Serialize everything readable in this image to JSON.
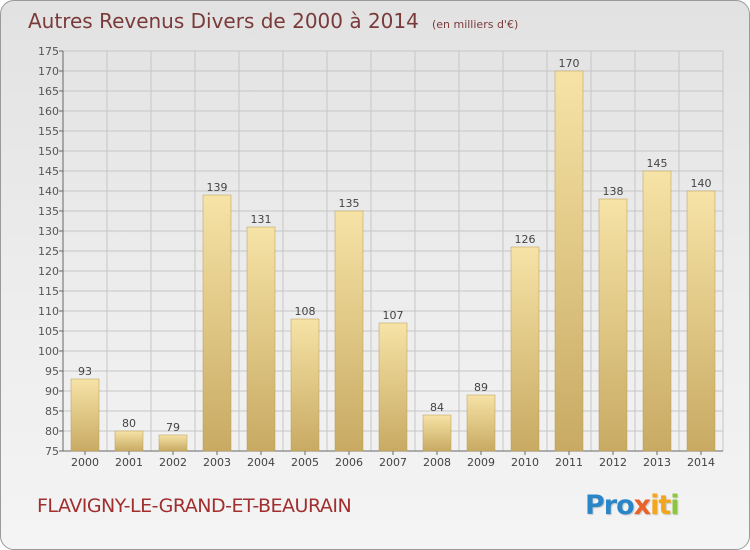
{
  "title": {
    "main": "Autres Revenus Divers de 2000 à 2014",
    "sub": "(en milliers d'€)"
  },
  "commune": "FLAVIGNY-LE-GRAND-ET-BEAURAIN",
  "logo": {
    "text": "Proxiti",
    "parts": [
      "Pro",
      "x",
      "it",
      "i"
    ]
  },
  "colors": {
    "bar_light": "#f6e3a6",
    "bar_dark": "#c8aa63",
    "title": "#7a3a3a",
    "commune": "#a22f2f",
    "grid": "#c6c6c6"
  },
  "chart_data": {
    "type": "bar",
    "categories": [
      "2000",
      "2001",
      "2002",
      "2003",
      "2004",
      "2005",
      "2006",
      "2007",
      "2008",
      "2009",
      "2010",
      "2011",
      "2012",
      "2013",
      "2014"
    ],
    "values": [
      93,
      80,
      79,
      139,
      131,
      108,
      135,
      107,
      84,
      89,
      126,
      170,
      138,
      145,
      140
    ],
    "ylim": [
      75,
      175
    ],
    "yticks": [
      75,
      80,
      85,
      90,
      95,
      100,
      105,
      110,
      115,
      120,
      125,
      130,
      135,
      140,
      145,
      150,
      155,
      160,
      165,
      170,
      175
    ],
    "grid": true,
    "data_labels": true
  }
}
